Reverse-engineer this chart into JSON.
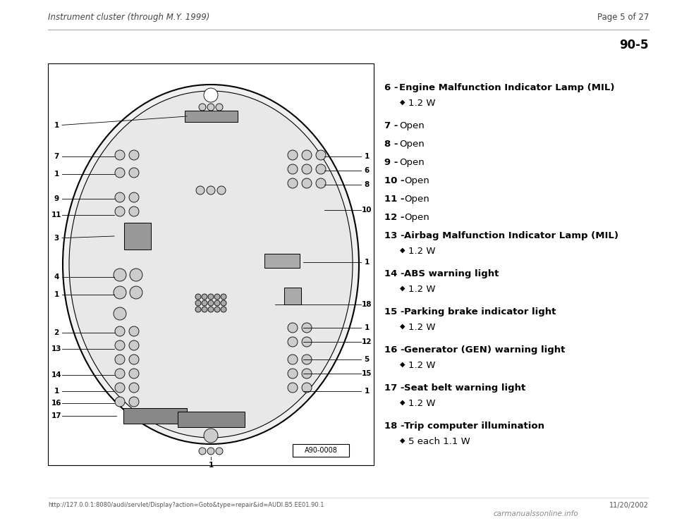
{
  "page_header_left": "Instrument cluster (through M.Y. 1999)",
  "page_header_right": "Page 5 of 27",
  "page_number_box": "90-5",
  "diagram_label": "A90-0008",
  "footer_url": "http://127.0.0.1:8080/audi/servlet/Display?action=Goto&type=repair&id=AUDI.B5.EE01.90.1",
  "footer_right": "11/20/2002",
  "footer_logo": "carmanualssonline.info",
  "bg_color": "#ffffff",
  "items": [
    {
      "num": "6",
      "label": "Engine Malfunction Indicator Lamp (MIL)",
      "sub": "1.2 W",
      "bold": true
    },
    {
      "num": "7",
      "label": "Open",
      "sub": null,
      "bold": false
    },
    {
      "num": "8",
      "label": "Open",
      "sub": null,
      "bold": false
    },
    {
      "num": "9",
      "label": "Open",
      "sub": null,
      "bold": false
    },
    {
      "num": "10",
      "label": "Open",
      "sub": null,
      "bold": false
    },
    {
      "num": "11",
      "label": "Open",
      "sub": null,
      "bold": false
    },
    {
      "num": "12",
      "label": "Open",
      "sub": null,
      "bold": false
    },
    {
      "num": "13",
      "label": "Airbag Malfunction Indicator Lamp (MIL)",
      "sub": "1.2 W",
      "bold": true
    },
    {
      "num": "14",
      "label": "ABS warning light",
      "sub": "1.2 W",
      "bold": true
    },
    {
      "num": "15",
      "label": "Parking brake indicator light",
      "sub": "1.2 W",
      "bold": true
    },
    {
      "num": "16",
      "label": "Generator (GEN) warning light",
      "sub": "1.2 W",
      "bold": true
    },
    {
      "num": "17",
      "label": "Seat belt warning light",
      "sub": "1.2 W",
      "bold": true
    },
    {
      "num": "18",
      "label": "Trip computer illumination",
      "sub": "5 each 1.1 W",
      "bold": true
    }
  ]
}
